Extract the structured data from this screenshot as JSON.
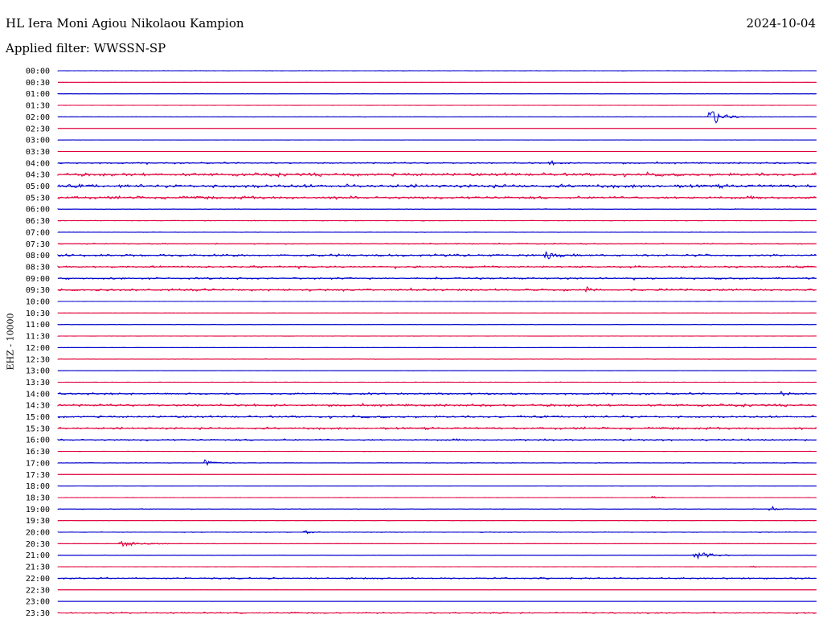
{
  "header": {
    "station": "HL Iera Moni Agiou Nikolaou Kampion",
    "date": "2024-10-04",
    "filter": "Applied filter: WWSSN-SP",
    "channel": "EHZ - 10000"
  },
  "chart_data": {
    "type": "line",
    "title": "HL Iera Moni Agiou Nikolaou Kampion",
    "ylabel": "EHZ - 10000",
    "xlabel": "",
    "traces": [
      "00:00",
      "00:30",
      "01:00",
      "01:30",
      "02:00",
      "02:30",
      "03:00",
      "03:30",
      "04:00",
      "04:30",
      "05:00",
      "05:30",
      "06:00",
      "06:30",
      "07:00",
      "07:30",
      "08:00",
      "08:30",
      "09:00",
      "09:30",
      "10:00",
      "10:30",
      "11:00",
      "11:30",
      "12:00",
      "12:30",
      "13:00",
      "13:30",
      "14:00",
      "14:30",
      "15:00",
      "15:30",
      "16:00",
      "16:30",
      "17:00",
      "17:30",
      "18:00",
      "18:30",
      "19:00",
      "19:30",
      "20:00",
      "20:30",
      "21:00",
      "21:30",
      "22:00",
      "22:30",
      "23:00",
      "23:30"
    ],
    "trace_duration_minutes": 30,
    "colors": [
      "#0000cc",
      "#e0003c"
    ],
    "noise_levels": [
      0.3,
      0.1,
      0.3,
      0.1,
      0.3,
      0.1,
      0.2,
      0.1,
      1.2,
      2.4,
      2.6,
      2.2,
      0.5,
      0.5,
      0.4,
      0.9,
      1.8,
      1.4,
      1.4,
      1.6,
      0.2,
      0.2,
      0.4,
      0.2,
      0.3,
      0.6,
      0.2,
      0.3,
      1.5,
      1.8,
      1.6,
      1.7,
      1.4,
      0.3,
      0.5,
      0.3,
      0.2,
      0.2,
      0.6,
      0.3,
      0.4,
      0.3,
      0.4,
      0.2,
      1.2,
      0.1,
      0.1,
      1.0
    ],
    "events": [
      {
        "trace": "02:00",
        "minute": 25.8,
        "amplitude": 15,
        "duration_minutes": 0.6
      },
      {
        "trace": "04:00",
        "minute": 19.5,
        "amplitude": 3,
        "duration_minutes": 0.3
      },
      {
        "trace": "08:00",
        "minute": 19.3,
        "amplitude": 5,
        "duration_minutes": 0.5
      },
      {
        "trace": "09:30",
        "minute": 20.9,
        "amplitude": 4,
        "duration_minutes": 0.3
      },
      {
        "trace": "14:00",
        "minute": 28.6,
        "amplitude": 3,
        "duration_minutes": 0.3
      },
      {
        "trace": "15:00",
        "minute": 22.4,
        "amplitude": 3,
        "duration_minutes": 0.2
      },
      {
        "trace": "17:00",
        "minute": 5.8,
        "amplitude": 4,
        "duration_minutes": 0.5
      },
      {
        "trace": "18:30",
        "minute": 23.5,
        "amplitude": 2,
        "duration_minutes": 0.4
      },
      {
        "trace": "19:00",
        "minute": 28.2,
        "amplitude": 6,
        "duration_minutes": 0.2
      },
      {
        "trace": "20:00",
        "minute": 9.8,
        "amplitude": 2,
        "duration_minutes": 0.4
      },
      {
        "trace": "20:30",
        "minute": 2.5,
        "amplitude": 4,
        "duration_minutes": 1.2
      },
      {
        "trace": "21:00",
        "minute": 25.2,
        "amplitude": 5,
        "duration_minutes": 0.9
      },
      {
        "trace": "21:30",
        "minute": 27.4,
        "amplitude": 2,
        "duration_minutes": 0.3
      }
    ]
  }
}
